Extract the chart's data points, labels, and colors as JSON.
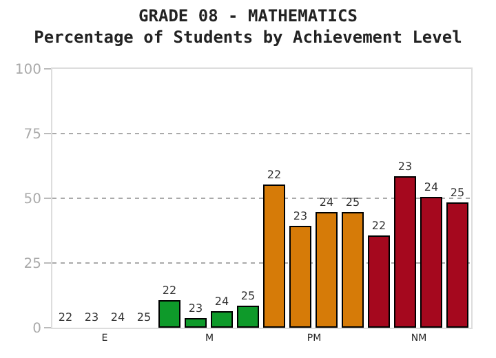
{
  "chart_data": {
    "type": "bar",
    "title": "GRADE 08 - MATHEMATICS",
    "subtitle": "Percentage of Students by Achievement Level",
    "categories": [
      "E",
      "M",
      "PM",
      "NM"
    ],
    "series": [
      {
        "name": "22",
        "colors": [
          "#808080",
          "#0e9a2a",
          "#d67b08",
          "#a5081e"
        ],
        "values": [
          0,
          10,
          55,
          35
        ]
      },
      {
        "name": "23",
        "colors": [
          "#808080",
          "#0e9a2a",
          "#d67b08",
          "#a5081e"
        ],
        "values": [
          0,
          3,
          39,
          58
        ]
      },
      {
        "name": "24",
        "colors": [
          "#808080",
          "#0e9a2a",
          "#d67b08",
          "#a5081e"
        ],
        "values": [
          0,
          6,
          44,
          50
        ]
      },
      {
        "name": "25",
        "colors": [
          "#808080",
          "#0e9a2a",
          "#d67b08",
          "#a5081e"
        ],
        "values": [
          0,
          8,
          44,
          48
        ]
      }
    ],
    "ylim": [
      0,
      100
    ],
    "yticks": [
      0,
      25,
      50,
      75,
      100
    ],
    "grid": "y",
    "legend": false
  }
}
